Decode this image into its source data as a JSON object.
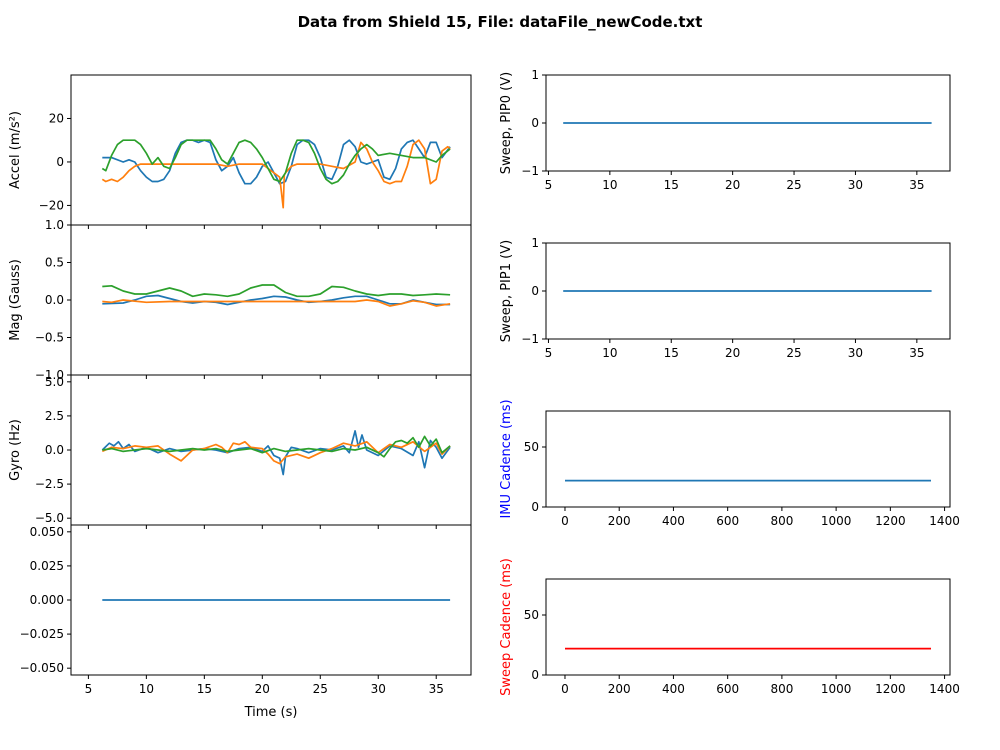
{
  "figure": {
    "suptitle": "Data from Shield 15, File: dataFile_newCode.txt"
  },
  "colors": {
    "c0": "#1f77b4",
    "c1": "#ff7f0e",
    "c2": "#2ca02c",
    "sweep_cadence": "#ff0000",
    "imu_label": "#0000ff",
    "sweep_label": "#ff0000"
  },
  "chart_data": [
    {
      "id": "accel",
      "type": "line",
      "xlabel": "",
      "ylabel": "Accel (m/s²)",
      "xlim": [
        3.5,
        38
      ],
      "ylim": [
        -29,
        40
      ],
      "xticks": [
        5,
        10,
        15,
        20,
        25,
        30,
        35
      ],
      "show_xticklabels": false,
      "yticks": [
        -20,
        0,
        20
      ],
      "ytick_labels": [
        "−20",
        "0",
        "20"
      ],
      "series": [
        {
          "color": "c0",
          "x": [
            6.2,
            7,
            8,
            8.5,
            9,
            9.5,
            10,
            10.5,
            11,
            11.5,
            12,
            12.5,
            13,
            13.5,
            14,
            14.5,
            15,
            15.5,
            16,
            16.5,
            17,
            17.5,
            18,
            18.5,
            19,
            19.5,
            20,
            20.5,
            21,
            21.5,
            22,
            22.5,
            23,
            23.5,
            24,
            24.5,
            25,
            25.5,
            26,
            26.5,
            27,
            27.5,
            28,
            28.5,
            29,
            29.5,
            30,
            30.5,
            31,
            31.5,
            32,
            32.5,
            33,
            33.5,
            34,
            34.5,
            35,
            35.5,
            36.2
          ],
          "y": [
            2,
            2,
            0,
            1,
            0,
            -4,
            -7,
            -9,
            -9,
            -8,
            -4,
            4,
            9,
            10,
            10,
            9,
            10,
            9,
            1,
            -4,
            -2,
            2,
            -5,
            -10,
            -10,
            -7,
            -2,
            0,
            -5,
            -10,
            -9,
            -2,
            8,
            10,
            10,
            8,
            2,
            -7,
            -8,
            -2,
            8,
            10,
            7,
            0,
            -1,
            0,
            1,
            -7,
            -8,
            -3,
            6,
            9,
            10,
            6,
            2,
            9,
            9,
            2,
            7
          ]
        },
        {
          "color": "c1",
          "x": [
            6.2,
            6.5,
            7,
            7.5,
            8,
            8.5,
            9,
            9.5,
            10,
            11,
            12,
            13,
            14,
            15,
            16,
            17,
            18,
            19,
            20,
            20.5,
            21,
            21.5,
            21.8,
            21.9,
            22,
            22.5,
            23,
            24,
            25,
            26,
            27,
            28,
            28.5,
            29,
            29.5,
            30,
            30.5,
            31,
            31.5,
            32,
            32.5,
            33,
            33.5,
            34,
            34.5,
            35,
            35.5,
            36,
            36.2
          ],
          "y": [
            -8,
            -9,
            -8,
            -9,
            -7,
            -4,
            -2,
            -1,
            -1,
            -1,
            -1,
            -1,
            -1,
            -1,
            -1,
            -2,
            -1,
            -1,
            -1,
            -3,
            -5,
            -7,
            -21,
            -6,
            -5,
            -2,
            -1,
            -1,
            -1,
            -2,
            -3,
            0,
            9,
            6,
            0,
            -4,
            -9,
            -10,
            -9,
            -9,
            -2,
            8,
            10,
            6,
            -10,
            -8,
            5,
            7,
            6
          ]
        },
        {
          "color": "c2",
          "x": [
            6.2,
            6.5,
            7,
            7.5,
            8,
            8.5,
            9,
            9.5,
            10,
            10.5,
            11,
            11.5,
            12,
            12.5,
            13,
            13.5,
            14,
            14.5,
            15,
            15.5,
            16,
            16.5,
            17,
            17.5,
            18,
            18.5,
            19,
            19.5,
            20,
            20.5,
            21,
            21.5,
            22,
            22.5,
            23,
            23.5,
            24,
            24.5,
            25,
            25.5,
            26,
            26.5,
            27,
            27.5,
            28,
            28.5,
            29,
            29.5,
            30,
            31,
            32,
            33,
            34,
            35,
            35.5,
            36.2
          ],
          "y": [
            -3,
            -4,
            3,
            8,
            10,
            10,
            10,
            8,
            4,
            -1,
            2,
            -2,
            -3,
            2,
            8,
            10,
            10,
            10,
            10,
            10,
            6,
            1,
            -1,
            4,
            9,
            10,
            9,
            6,
            2,
            -3,
            -8,
            -9,
            -5,
            4,
            10,
            10,
            9,
            4,
            -3,
            -8,
            -10,
            -9,
            -6,
            -1,
            3,
            6,
            8,
            6,
            3,
            4,
            3,
            2,
            2,
            0,
            3,
            6
          ]
        }
      ]
    },
    {
      "id": "mag",
      "type": "line",
      "xlabel": "",
      "ylabel": "Mag (Gauss)",
      "xlim": [
        3.5,
        38
      ],
      "ylim": [
        -1.0,
        1.0
      ],
      "xticks": [
        5,
        10,
        15,
        20,
        25,
        30,
        35
      ],
      "show_xticklabels": false,
      "yticks": [
        -1.0,
        -0.5,
        0.0,
        0.5,
        1.0
      ],
      "ytick_labels": [
        "−1.0",
        "−0.5",
        "0.0",
        "0.5",
        "1.0"
      ],
      "series": [
        {
          "color": "c0",
          "x": [
            6.2,
            8,
            9,
            10,
            11,
            12,
            13,
            14,
            15,
            16,
            17,
            18,
            19,
            20,
            21,
            22,
            23,
            24,
            25,
            26,
            27,
            28,
            29,
            30,
            31,
            32,
            33,
            34,
            35,
            36.2
          ],
          "y": [
            -0.05,
            -0.04,
            0.0,
            0.05,
            0.06,
            0.02,
            -0.02,
            -0.04,
            -0.02,
            -0.03,
            -0.06,
            -0.03,
            0.0,
            0.02,
            0.05,
            0.04,
            0.0,
            -0.03,
            -0.02,
            0.0,
            0.03,
            0.05,
            0.05,
            0.0,
            -0.05,
            -0.05,
            0.0,
            -0.03,
            -0.06,
            -0.06
          ]
        },
        {
          "color": "c1",
          "x": [
            6.2,
            7,
            8,
            10,
            12,
            14,
            16,
            18,
            20,
            22,
            24,
            26,
            28,
            29,
            30,
            31,
            32,
            33,
            34,
            35,
            36.2
          ],
          "y": [
            -0.02,
            -0.03,
            0.0,
            -0.03,
            -0.02,
            -0.02,
            -0.02,
            -0.02,
            -0.02,
            -0.02,
            -0.02,
            -0.02,
            -0.02,
            0.0,
            -0.02,
            -0.08,
            -0.05,
            -0.01,
            -0.03,
            -0.08,
            -0.05
          ]
        },
        {
          "color": "c2",
          "x": [
            6.2,
            7,
            8,
            9,
            10,
            11,
            12,
            13,
            14,
            15,
            16,
            17,
            18,
            19,
            20,
            21,
            22,
            23,
            24,
            25,
            26,
            27,
            28,
            29,
            30,
            31,
            32,
            33,
            34,
            35,
            36.2
          ],
          "y": [
            0.18,
            0.19,
            0.12,
            0.08,
            0.08,
            0.12,
            0.16,
            0.12,
            0.05,
            0.08,
            0.07,
            0.05,
            0.08,
            0.16,
            0.2,
            0.2,
            0.1,
            0.05,
            0.05,
            0.08,
            0.18,
            0.17,
            0.12,
            0.08,
            0.06,
            0.08,
            0.08,
            0.06,
            0.07,
            0.08,
            0.07
          ]
        }
      ]
    },
    {
      "id": "gyro",
      "type": "line",
      "xlabel": "",
      "ylabel": "Gyro (Hz)",
      "xlim": [
        3.5,
        38
      ],
      "ylim": [
        -5.5,
        5.5
      ],
      "xticks": [
        5,
        10,
        15,
        20,
        25,
        30,
        35
      ],
      "show_xticklabels": false,
      "yticks": [
        -5.0,
        -2.5,
        0.0,
        2.5,
        5.0
      ],
      "ytick_labels": [
        "−5.0",
        "−2.5",
        "0.0",
        "2.5",
        "5.0"
      ],
      "series": [
        {
          "color": "c0",
          "x": [
            6.2,
            6.8,
            7.2,
            7.6,
            8,
            8.5,
            9,
            10,
            11,
            12,
            13,
            14,
            15,
            16,
            17,
            18,
            19,
            20,
            20.5,
            21,
            21.5,
            21.8,
            22,
            22.5,
            23,
            24,
            25,
            26,
            27,
            27.5,
            28,
            28.3,
            28.6,
            29,
            30,
            31,
            32,
            33,
            33.5,
            34,
            34.5,
            35,
            35.5,
            36.2
          ],
          "y": [
            0.0,
            0.5,
            0.3,
            0.6,
            0.1,
            0.4,
            -0.1,
            0.2,
            -0.2,
            0.1,
            -0.1,
            0.0,
            0.1,
            0.0,
            -0.2,
            0.1,
            0.2,
            -0.1,
            0.3,
            -0.4,
            -0.6,
            -1.8,
            -0.5,
            0.2,
            0.1,
            -0.2,
            0.1,
            0.0,
            0.3,
            -0.2,
            1.4,
            0.2,
            1.1,
            0.0,
            -0.4,
            0.3,
            0.1,
            -0.4,
            0.6,
            -1.3,
            0.7,
            0.2,
            -0.6,
            0.2
          ]
        },
        {
          "color": "c1",
          "x": [
            6.2,
            7,
            8,
            9,
            10,
            11,
            12,
            13,
            14,
            15,
            16,
            16.5,
            17,
            17.5,
            18,
            18.5,
            19,
            20,
            20.5,
            21,
            21.5,
            22,
            23,
            24,
            25,
            26,
            27,
            28,
            29,
            30,
            31,
            32,
            33,
            34,
            35,
            35.5,
            36.2
          ],
          "y": [
            -0.1,
            0.2,
            0.1,
            0.3,
            0.2,
            0.3,
            -0.3,
            -0.8,
            0.0,
            0.1,
            0.4,
            0.2,
            -0.2,
            0.5,
            0.4,
            0.6,
            0.2,
            0.1,
            -0.3,
            -0.8,
            -1.0,
            -0.5,
            -0.3,
            -0.6,
            -0.2,
            0.1,
            0.5,
            0.3,
            0.6,
            -0.2,
            0.4,
            0.2,
            0.6,
            -0.1,
            0.5,
            -0.3,
            0.3
          ]
        },
        {
          "color": "c2",
          "x": [
            6.2,
            7,
            8,
            9,
            10,
            11,
            12,
            13,
            14,
            15,
            16,
            17,
            18,
            19,
            20,
            21,
            22,
            23,
            24,
            25,
            26,
            27,
            28,
            29,
            30,
            30.5,
            31,
            31.5,
            32,
            32.5,
            33,
            33.5,
            34,
            34.5,
            35,
            35.5,
            36.2
          ],
          "y": [
            0.0,
            0.1,
            -0.1,
            0.0,
            0.1,
            0.0,
            -0.1,
            0.0,
            0.1,
            0.0,
            0.1,
            -0.1,
            0.0,
            0.1,
            -0.2,
            0.1,
            -0.1,
            0.0,
            0.1,
            0.0,
            -0.1,
            0.1,
            0.0,
            0.2,
            -0.2,
            -0.5,
            0.1,
            0.6,
            0.7,
            0.5,
            0.9,
            0.2,
            1.0,
            0.3,
            0.8,
            -0.2,
            0.3
          ]
        }
      ]
    },
    {
      "id": "bottom-left",
      "type": "line",
      "xlabel": "Time (s)",
      "ylabel": "",
      "xlim": [
        3.5,
        38
      ],
      "ylim": [
        -0.055,
        0.055
      ],
      "xticks": [
        5,
        10,
        15,
        20,
        25,
        30,
        35
      ],
      "show_xticklabels": true,
      "yticks": [
        -0.05,
        -0.025,
        0.0,
        0.025,
        0.05
      ],
      "ytick_labels": [
        "−0.050",
        "−0.025",
        "0.000",
        "0.025",
        "0.050"
      ],
      "series": [
        {
          "color": "c0",
          "x": [
            6.2,
            36.2
          ],
          "y": [
            0,
            0
          ]
        }
      ]
    },
    {
      "id": "sweep-pip0",
      "type": "line",
      "xlabel": "",
      "ylabel": "Sweep, PIP0 (V)",
      "xlim": [
        4.8,
        37.7
      ],
      "ylim": [
        -1,
        1
      ],
      "xticks": [
        5,
        10,
        15,
        20,
        25,
        30,
        35
      ],
      "show_xticklabels": true,
      "yticks": [
        -1,
        0,
        1
      ],
      "ytick_labels": [
        "−1",
        "0",
        "1"
      ],
      "series": [
        {
          "color": "c0",
          "x": [
            6.2,
            36.2
          ],
          "y": [
            0,
            0
          ]
        }
      ]
    },
    {
      "id": "sweep-pip1",
      "type": "line",
      "xlabel": "",
      "ylabel": "Sweep, PIP1 (V)",
      "xlim": [
        4.8,
        37.7
      ],
      "ylim": [
        -1,
        1
      ],
      "xticks": [
        5,
        10,
        15,
        20,
        25,
        30,
        35
      ],
      "show_xticklabels": true,
      "yticks": [
        -1,
        0,
        1
      ],
      "ytick_labels": [
        "−1",
        "0",
        "1"
      ],
      "series": [
        {
          "color": "c0",
          "x": [
            6.2,
            36.2
          ],
          "y": [
            0,
            0
          ]
        }
      ]
    },
    {
      "id": "imu-cadence",
      "type": "line",
      "xlabel": "",
      "ylabel": "IMU Cadence (ms)",
      "ylabel_color": "imu_label",
      "xlim": [
        -70,
        1420
      ],
      "ylim": [
        0,
        80
      ],
      "xticks": [
        0,
        200,
        400,
        600,
        800,
        1000,
        1200,
        1400
      ],
      "show_xticklabels": true,
      "yticks": [
        0,
        50
      ],
      "ytick_labels": [
        "0",
        "50"
      ],
      "series": [
        {
          "color": "c0",
          "x": [
            0,
            1350
          ],
          "y": [
            22,
            22
          ]
        }
      ]
    },
    {
      "id": "sweep-cadence",
      "type": "line",
      "xlabel": "",
      "ylabel": "Sweep Cadence (ms)",
      "ylabel_color": "sweep_label",
      "xlim": [
        -70,
        1420
      ],
      "ylim": [
        0,
        80
      ],
      "xticks": [
        0,
        200,
        400,
        600,
        800,
        1000,
        1200,
        1400
      ],
      "show_xticklabels": true,
      "yticks": [
        0,
        50
      ],
      "ytick_labels": [
        "0",
        "50"
      ],
      "series": [
        {
          "color": "sweep_cadence",
          "x": [
            0,
            1350
          ],
          "y": [
            22,
            22
          ]
        }
      ]
    }
  ]
}
